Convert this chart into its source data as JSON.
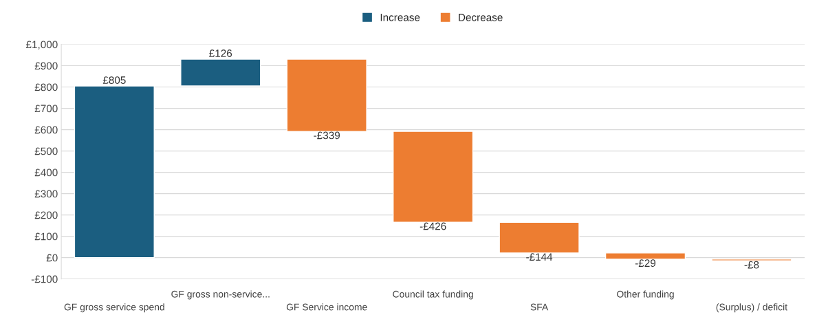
{
  "chart_data": {
    "type": "bar",
    "categories": [
      "GF gross service spend",
      "GF gross non-service...",
      "GF Service income",
      "Council tax funding",
      "SFA",
      "Other funding",
      "(Surplus) / deficit"
    ],
    "series": [
      {
        "name": "Increase",
        "color": "#1b5e80",
        "base": [
          0,
          805,
          null,
          null,
          null,
          null,
          null
        ],
        "values": [
          805,
          126,
          null,
          null,
          null,
          null,
          null
        ],
        "value_labels": [
          "£805",
          "£126",
          null,
          null,
          null,
          null,
          null
        ]
      },
      {
        "name": "Decrease",
        "color": "#ed7d31",
        "base": [
          null,
          null,
          931,
          592,
          166,
          22,
          -7
        ],
        "values": [
          null,
          null,
          -339,
          -426,
          -144,
          -29,
          -8
        ],
        "value_labels": [
          null,
          null,
          "-£339",
          "-£426",
          "-£144",
          "-£29",
          "-£8"
        ]
      }
    ],
    "ylim": [
      -100,
      1000
    ],
    "yticks": [
      {
        "value": -100,
        "label": "-£100"
      },
      {
        "value": 0,
        "label": "£0"
      },
      {
        "value": 100,
        "label": "£100"
      },
      {
        "value": 200,
        "label": "£200"
      },
      {
        "value": 300,
        "label": "£300"
      },
      {
        "value": 400,
        "label": "£400"
      },
      {
        "value": 500,
        "label": "£500"
      },
      {
        "value": 600,
        "label": "£600"
      },
      {
        "value": 700,
        "label": "£700"
      },
      {
        "value": 800,
        "label": "£800"
      },
      {
        "value": 900,
        "label": "£900"
      },
      {
        "value": 1000,
        "label": "£1,000"
      }
    ],
    "grid": "y",
    "legend": "top"
  }
}
